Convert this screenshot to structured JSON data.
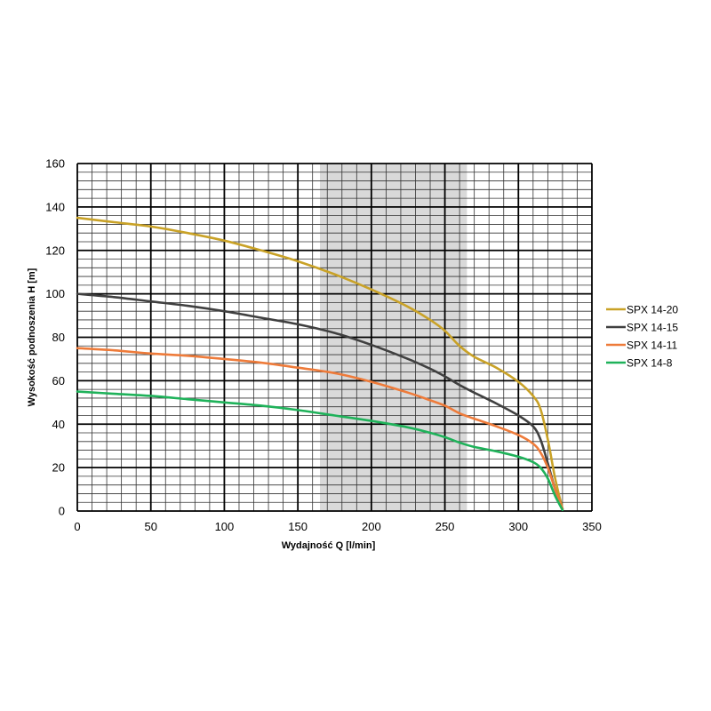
{
  "chart_data": {
    "type": "line",
    "title": "",
    "xlabel": "Wydajność Q [l/min]",
    "ylabel": "Wysokość podnoszenia H [m]",
    "xlim": [
      0,
      350
    ],
    "ylim": [
      0,
      160
    ],
    "x_major_ticks": [
      0,
      50,
      100,
      150,
      200,
      250,
      300,
      350
    ],
    "y_major_ticks": [
      0,
      20,
      40,
      60,
      80,
      100,
      120,
      140,
      160
    ],
    "x_minor_step": 10,
    "y_minor_step": 4,
    "grid": true,
    "legend_position": "right",
    "highlight_band": {
      "x_from": 165,
      "x_to": 265,
      "color": "#d9d9d9"
    },
    "series": [
      {
        "name": "SPX 14-20",
        "color": "#c9a227",
        "x": [
          0,
          25,
          50,
          75,
          100,
          125,
          150,
          175,
          200,
          225,
          240,
          250,
          260,
          270,
          285,
          300,
          310,
          315,
          320,
          325,
          330
        ],
        "y": [
          135,
          133,
          131,
          128,
          124.5,
          120,
          115,
          109,
          102,
          94,
          88,
          83,
          76,
          71,
          66,
          59.5,
          53,
          47,
          33,
          15,
          1
        ]
      },
      {
        "name": "SPX 14-15",
        "color": "#404040",
        "x": [
          0,
          25,
          50,
          75,
          100,
          125,
          150,
          175,
          200,
          225,
          240,
          250,
          260,
          270,
          285,
          300,
          310,
          315,
          320,
          325,
          330
        ],
        "y": [
          100,
          98.5,
          96.5,
          94.5,
          92,
          89,
          86,
          82,
          76.5,
          70,
          65.5,
          62,
          58,
          54.5,
          49.5,
          44,
          39,
          33,
          22,
          10,
          1
        ]
      },
      {
        "name": "SPX 14-11",
        "color": "#ee7b3a",
        "x": [
          0,
          25,
          50,
          75,
          100,
          125,
          150,
          175,
          200,
          225,
          240,
          250,
          260,
          270,
          285,
          300,
          310,
          315,
          320,
          325,
          330
        ],
        "y": [
          75,
          74,
          72.5,
          71.5,
          70,
          68.3,
          66,
          63.5,
          59.5,
          54.5,
          51,
          48.5,
          45,
          42.5,
          39,
          35,
          31,
          27,
          20,
          10,
          1
        ]
      },
      {
        "name": "SPX 14-8",
        "color": "#1fb25a",
        "x": [
          0,
          25,
          50,
          75,
          100,
          125,
          150,
          175,
          200,
          225,
          240,
          250,
          260,
          270,
          285,
          300,
          310,
          315,
          320,
          325,
          330
        ],
        "y": [
          55,
          54,
          53,
          51.5,
          50,
          48.5,
          46.5,
          44,
          41.5,
          38.5,
          36,
          34,
          31.5,
          29.5,
          27.5,
          25,
          22.5,
          20,
          15,
          7,
          0.5
        ]
      }
    ]
  }
}
